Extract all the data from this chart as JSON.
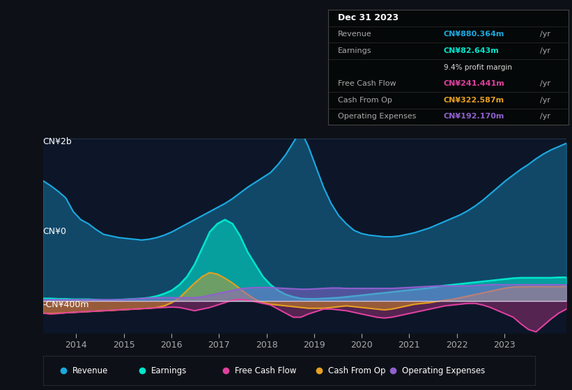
{
  "bg_color": "#0d1117",
  "plot_bg_color": "#0c1628",
  "ylabel_top": "CN¥2b",
  "ylabel_mid": "CN¥0",
  "ylabel_bot": "-CN¥400m",
  "ylim": [
    -400,
    2000
  ],
  "yticks": [
    -400,
    0,
    2000
  ],
  "xmin": 2013.3,
  "xmax": 2024.3,
  "xticks": [
    2014,
    2015,
    2016,
    2017,
    2018,
    2019,
    2020,
    2021,
    2022,
    2023
  ],
  "legend": [
    {
      "label": "Revenue",
      "color": "#1ca8e0"
    },
    {
      "label": "Earnings",
      "color": "#00e5cc"
    },
    {
      "label": "Free Cash Flow",
      "color": "#e040a0"
    },
    {
      "label": "Cash From Op",
      "color": "#e8a020"
    },
    {
      "label": "Operating Expenses",
      "color": "#9060d0"
    }
  ],
  "info_title": "Dec 31 2023",
  "info_rows": [
    {
      "label": "Revenue",
      "value": "CN¥880.364m",
      "color": "#1ca8e0"
    },
    {
      "label": "Earnings",
      "value": "CN¥82.643m",
      "color": "#00e5cc"
    },
    {
      "label": "",
      "value": "9.4% profit margin",
      "color": "#dddddd"
    },
    {
      "label": "Free Cash Flow",
      "value": "CN¥241.441m",
      "color": "#e040a0"
    },
    {
      "label": "Cash From Op",
      "value": "CN¥322.587m",
      "color": "#e8a020"
    },
    {
      "label": "Operating Expenses",
      "value": "CN¥192.170m",
      "color": "#9060d0"
    }
  ],
  "revenue": [
    1480,
    1420,
    1350,
    1270,
    1100,
    1000,
    950,
    880,
    820,
    800,
    780,
    770,
    760,
    750,
    760,
    780,
    810,
    850,
    900,
    950,
    1000,
    1050,
    1100,
    1150,
    1200,
    1260,
    1330,
    1400,
    1460,
    1520,
    1580,
    1680,
    1800,
    1950,
    2100,
    1900,
    1650,
    1400,
    1200,
    1050,
    950,
    870,
    830,
    810,
    800,
    790,
    790,
    800,
    820,
    840,
    870,
    900,
    940,
    980,
    1020,
    1060,
    1110,
    1170,
    1240,
    1320,
    1400,
    1480,
    1550,
    1620,
    1680,
    1750,
    1810,
    1860,
    1900,
    1940
  ],
  "earnings": [
    30,
    30,
    25,
    25,
    20,
    20,
    20,
    15,
    10,
    10,
    15,
    20,
    25,
    30,
    40,
    60,
    90,
    130,
    200,
    300,
    450,
    650,
    850,
    950,
    1000,
    950,
    800,
    600,
    450,
    300,
    200,
    130,
    80,
    50,
    30,
    25,
    25,
    30,
    35,
    40,
    50,
    60,
    70,
    80,
    90,
    100,
    110,
    120,
    130,
    140,
    150,
    160,
    175,
    190,
    200,
    210,
    220,
    230,
    240,
    250,
    260,
    270,
    280,
    285,
    285,
    285,
    285,
    285,
    290,
    290
  ],
  "free_cash_flow": [
    -150,
    -160,
    -155,
    -145,
    -140,
    -135,
    -130,
    -125,
    -120,
    -115,
    -110,
    -105,
    -100,
    -95,
    -90,
    -85,
    -80,
    -75,
    -80,
    -100,
    -120,
    -100,
    -80,
    -50,
    -20,
    10,
    20,
    10,
    -10,
    -30,
    -50,
    -100,
    -150,
    -200,
    -200,
    -160,
    -130,
    -100,
    -100,
    -110,
    -120,
    -140,
    -160,
    -180,
    -200,
    -210,
    -200,
    -180,
    -160,
    -140,
    -120,
    -100,
    -80,
    -60,
    -50,
    -40,
    -30,
    -30,
    -50,
    -80,
    -120,
    -160,
    -200,
    -280,
    -350,
    -380,
    -300,
    -220,
    -150,
    -100
  ],
  "cash_from_op": [
    -150,
    -155,
    -150,
    -145,
    -140,
    -135,
    -130,
    -125,
    -120,
    -115,
    -110,
    -105,
    -100,
    -95,
    -90,
    -80,
    -60,
    -20,
    40,
    130,
    220,
    300,
    350,
    330,
    280,
    220,
    150,
    80,
    20,
    -20,
    -40,
    -50,
    -60,
    -70,
    -80,
    -90,
    -90,
    -90,
    -80,
    -70,
    -60,
    -70,
    -80,
    -90,
    -100,
    -110,
    -100,
    -80,
    -60,
    -40,
    -30,
    -20,
    -5,
    10,
    20,
    40,
    60,
    80,
    100,
    120,
    140,
    160,
    170,
    175,
    175,
    175,
    175,
    175,
    175,
    180
  ],
  "op_expenses": [
    15,
    15,
    15,
    15,
    15,
    15,
    15,
    15,
    15,
    15,
    15,
    20,
    25,
    30,
    35,
    40,
    40,
    40,
    40,
    40,
    40,
    50,
    70,
    90,
    110,
    130,
    150,
    160,
    165,
    165,
    165,
    160,
    155,
    150,
    145,
    145,
    150,
    155,
    160,
    160,
    155,
    155,
    155,
    155,
    155,
    155,
    155,
    160,
    165,
    170,
    175,
    180,
    185,
    185,
    185,
    185,
    185,
    190,
    195,
    200,
    200,
    200,
    200,
    200,
    200,
    200,
    200,
    200,
    200,
    200
  ]
}
